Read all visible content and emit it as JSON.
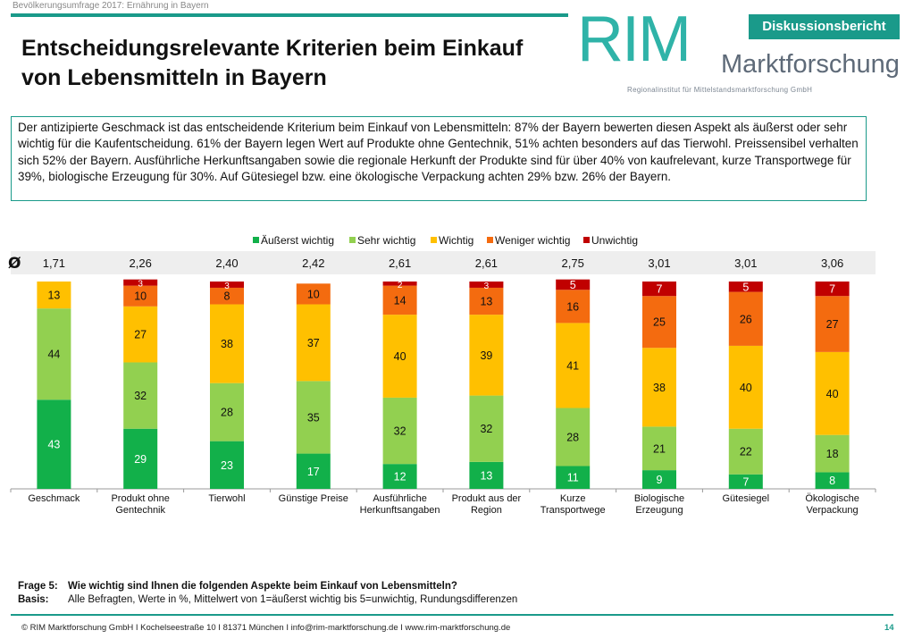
{
  "header": {
    "survey_label": "Bevölkerungsumfrage 2017: Ernährung in Bayern",
    "badge": "Diskussionsbericht",
    "logo_main": "RIM",
    "logo_sub": "Marktforschung",
    "logo_tagline": "Regionalinstitut für Mittelstandsmarktforschung GmbH"
  },
  "title": "Entscheidungsrelevante Kriterien beim Einkauf von Lebensmitteln in Bayern",
  "summary": "Der antizipierte Geschmack ist das entscheidende Kriterium beim Einkauf von Lebensmitteln: 87% der Bayern bewerten diesen Aspekt als äußerst oder sehr wichtig für die Kaufentscheidung. 61% der Bayern legen Wert auf Produkte ohne Gentechnik, 51% achten besonders auf das Tierwohl. Preissensibel verhalten sich 52% der Bayern. Ausführliche Herkunftsangaben sowie die regionale Herkunft der Produkte sind für über 40% von kaufrelevant, kurze Transportwege für 39%, biologische Erzeugung für 30%. Auf Gütesiegel bzw. eine ökologische Verpackung achten 29% bzw. 26% der Bayern.",
  "chart_data": {
    "type": "bar",
    "stacked": true,
    "mean_symbol": "Ø",
    "categories": [
      [
        "Geschmack"
      ],
      [
        "Produkt ohne",
        "Gentechnik"
      ],
      [
        "Tierwohl"
      ],
      [
        "Günstige Preise"
      ],
      [
        "Ausführliche",
        "Herkunftsangaben"
      ],
      [
        "Produkt aus der",
        "Region"
      ],
      [
        "Kurze",
        "Transportwege"
      ],
      [
        "Biologische",
        "Erzeugung"
      ],
      [
        "Gütesiegel"
      ],
      [
        "Ökologische",
        "Verpackung"
      ]
    ],
    "means": [
      "1,71",
      "2,26",
      "2,40",
      "2,42",
      "2,61",
      "2,61",
      "2,75",
      "3,01",
      "3,01",
      "3,06"
    ],
    "series": [
      {
        "name": "Äußerst wichtig",
        "color": "#12b04a",
        "values": [
          43,
          29,
          23,
          17,
          12,
          13,
          11,
          9,
          7,
          8
        ]
      },
      {
        "name": "Sehr wichtig",
        "color": "#92d050",
        "values": [
          44,
          32,
          28,
          35,
          32,
          32,
          28,
          21,
          22,
          18
        ]
      },
      {
        "name": "Wichtig",
        "color": "#ffc000",
        "values": [
          13,
          27,
          38,
          37,
          40,
          39,
          41,
          38,
          40,
          40
        ]
      },
      {
        "name": "Weniger wichtig",
        "color": "#f46b0f",
        "values": [
          null,
          10,
          8,
          10,
          14,
          13,
          16,
          25,
          26,
          27
        ]
      },
      {
        "name": "Unwichtig",
        "color": "#c00000",
        "values": [
          null,
          3,
          3,
          null,
          2,
          3,
          5,
          7,
          5,
          7
        ]
      }
    ],
    "ylim": [
      0,
      100
    ],
    "legend_position": "top"
  },
  "footnote": {
    "question_label": "Frage 5:",
    "question_text": "Wie wichtig sind Ihnen die folgenden Aspekte beim Einkauf von Lebensmitteln?",
    "basis_label": "Basis:",
    "basis_text": "Alle Befragten, Werte in %, Mittelwert von 1=äußerst wichtig bis 5=unwichtig, Rundungsdifferenzen"
  },
  "footer": {
    "text": "© RIM Marktforschung GmbH  I  Kochelseestraße 10  I  81371 München  I  info@rim-marktforschung.de  I  www.rim-marktforschung.de",
    "page": "14"
  }
}
